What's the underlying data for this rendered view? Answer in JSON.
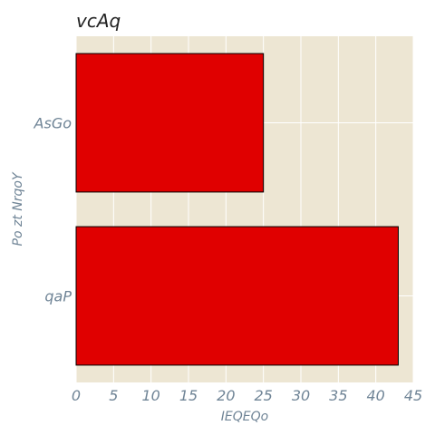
{
  "chart_data": {
    "type": "bar",
    "orientation": "horizontal",
    "title": "vcAq",
    "xlabel": "IEQEQo",
    "ylabel": "Po zt NrqoY",
    "categories": [
      "AsGo",
      "qaP"
    ],
    "values": [
      25,
      43
    ],
    "xlim": [
      0,
      45
    ],
    "xticks": [
      0,
      5,
      10,
      15,
      20,
      25,
      30,
      35,
      40,
      45
    ],
    "grid": true,
    "bar_color": "#e00000",
    "bar_edge_color": "#000000",
    "plot_background": "#ede6d3",
    "grid_color": "#ffffff"
  }
}
